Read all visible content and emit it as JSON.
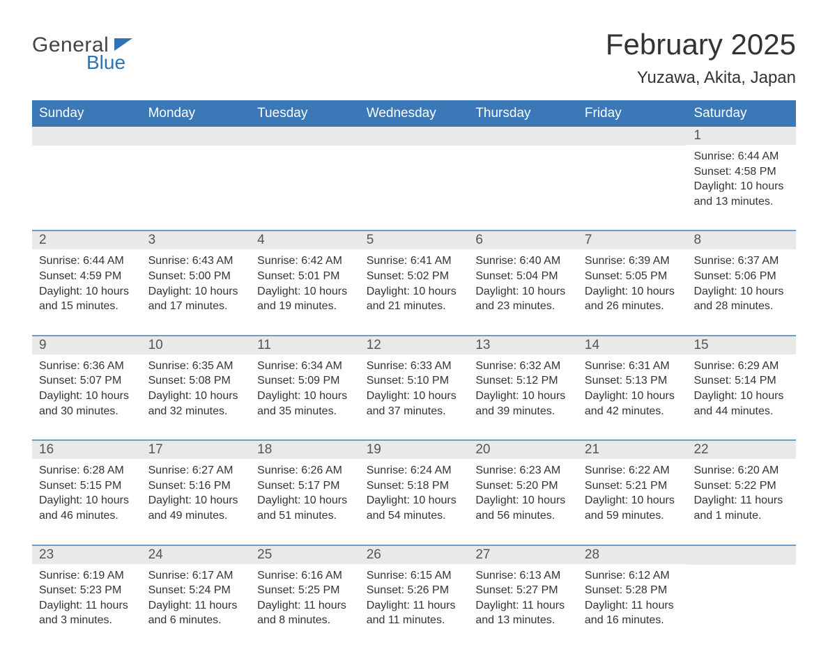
{
  "logo": {
    "text1": "General",
    "text2": "Blue"
  },
  "title": "February 2025",
  "location": "Yuzawa, Akita, Japan",
  "colors": {
    "header_bg": "#3a78b7",
    "header_text": "#ffffff",
    "week_border": "#6b9cca",
    "daynum_bg": "#e9e9e9",
    "body_text": "#333333",
    "logo_blue": "#2d73b5"
  },
  "typography": {
    "title_fontsize": 42,
    "location_fontsize": 24,
    "header_fontsize": 19,
    "daynum_fontsize": 19,
    "body_fontsize": 16
  },
  "day_header": [
    "Sunday",
    "Monday",
    "Tuesday",
    "Wednesday",
    "Thursday",
    "Friday",
    "Saturday"
  ],
  "labels": {
    "sunrise": "Sunrise:",
    "sunset": "Sunset:",
    "daylight": "Daylight:"
  },
  "weeks": [
    [
      null,
      null,
      null,
      null,
      null,
      null,
      {
        "n": "1",
        "sunrise": "6:44 AM",
        "sunset": "4:58 PM",
        "daylight": "10 hours and 13 minutes."
      }
    ],
    [
      {
        "n": "2",
        "sunrise": "6:44 AM",
        "sunset": "4:59 PM",
        "daylight": "10 hours and 15 minutes."
      },
      {
        "n": "3",
        "sunrise": "6:43 AM",
        "sunset": "5:00 PM",
        "daylight": "10 hours and 17 minutes."
      },
      {
        "n": "4",
        "sunrise": "6:42 AM",
        "sunset": "5:01 PM",
        "daylight": "10 hours and 19 minutes."
      },
      {
        "n": "5",
        "sunrise": "6:41 AM",
        "sunset": "5:02 PM",
        "daylight": "10 hours and 21 minutes."
      },
      {
        "n": "6",
        "sunrise": "6:40 AM",
        "sunset": "5:04 PM",
        "daylight": "10 hours and 23 minutes."
      },
      {
        "n": "7",
        "sunrise": "6:39 AM",
        "sunset": "5:05 PM",
        "daylight": "10 hours and 26 minutes."
      },
      {
        "n": "8",
        "sunrise": "6:37 AM",
        "sunset": "5:06 PM",
        "daylight": "10 hours and 28 minutes."
      }
    ],
    [
      {
        "n": "9",
        "sunrise": "6:36 AM",
        "sunset": "5:07 PM",
        "daylight": "10 hours and 30 minutes."
      },
      {
        "n": "10",
        "sunrise": "6:35 AM",
        "sunset": "5:08 PM",
        "daylight": "10 hours and 32 minutes."
      },
      {
        "n": "11",
        "sunrise": "6:34 AM",
        "sunset": "5:09 PM",
        "daylight": "10 hours and 35 minutes."
      },
      {
        "n": "12",
        "sunrise": "6:33 AM",
        "sunset": "5:10 PM",
        "daylight": "10 hours and 37 minutes."
      },
      {
        "n": "13",
        "sunrise": "6:32 AM",
        "sunset": "5:12 PM",
        "daylight": "10 hours and 39 minutes."
      },
      {
        "n": "14",
        "sunrise": "6:31 AM",
        "sunset": "5:13 PM",
        "daylight": "10 hours and 42 minutes."
      },
      {
        "n": "15",
        "sunrise": "6:29 AM",
        "sunset": "5:14 PM",
        "daylight": "10 hours and 44 minutes."
      }
    ],
    [
      {
        "n": "16",
        "sunrise": "6:28 AM",
        "sunset": "5:15 PM",
        "daylight": "10 hours and 46 minutes."
      },
      {
        "n": "17",
        "sunrise": "6:27 AM",
        "sunset": "5:16 PM",
        "daylight": "10 hours and 49 minutes."
      },
      {
        "n": "18",
        "sunrise": "6:26 AM",
        "sunset": "5:17 PM",
        "daylight": "10 hours and 51 minutes."
      },
      {
        "n": "19",
        "sunrise": "6:24 AM",
        "sunset": "5:18 PM",
        "daylight": "10 hours and 54 minutes."
      },
      {
        "n": "20",
        "sunrise": "6:23 AM",
        "sunset": "5:20 PM",
        "daylight": "10 hours and 56 minutes."
      },
      {
        "n": "21",
        "sunrise": "6:22 AM",
        "sunset": "5:21 PM",
        "daylight": "10 hours and 59 minutes."
      },
      {
        "n": "22",
        "sunrise": "6:20 AM",
        "sunset": "5:22 PM",
        "daylight": "11 hours and 1 minute."
      }
    ],
    [
      {
        "n": "23",
        "sunrise": "6:19 AM",
        "sunset": "5:23 PM",
        "daylight": "11 hours and 3 minutes."
      },
      {
        "n": "24",
        "sunrise": "6:17 AM",
        "sunset": "5:24 PM",
        "daylight": "11 hours and 6 minutes."
      },
      {
        "n": "25",
        "sunrise": "6:16 AM",
        "sunset": "5:25 PM",
        "daylight": "11 hours and 8 minutes."
      },
      {
        "n": "26",
        "sunrise": "6:15 AM",
        "sunset": "5:26 PM",
        "daylight": "11 hours and 11 minutes."
      },
      {
        "n": "27",
        "sunrise": "6:13 AM",
        "sunset": "5:27 PM",
        "daylight": "11 hours and 13 minutes."
      },
      {
        "n": "28",
        "sunrise": "6:12 AM",
        "sunset": "5:28 PM",
        "daylight": "11 hours and 16 minutes."
      },
      null
    ]
  ]
}
